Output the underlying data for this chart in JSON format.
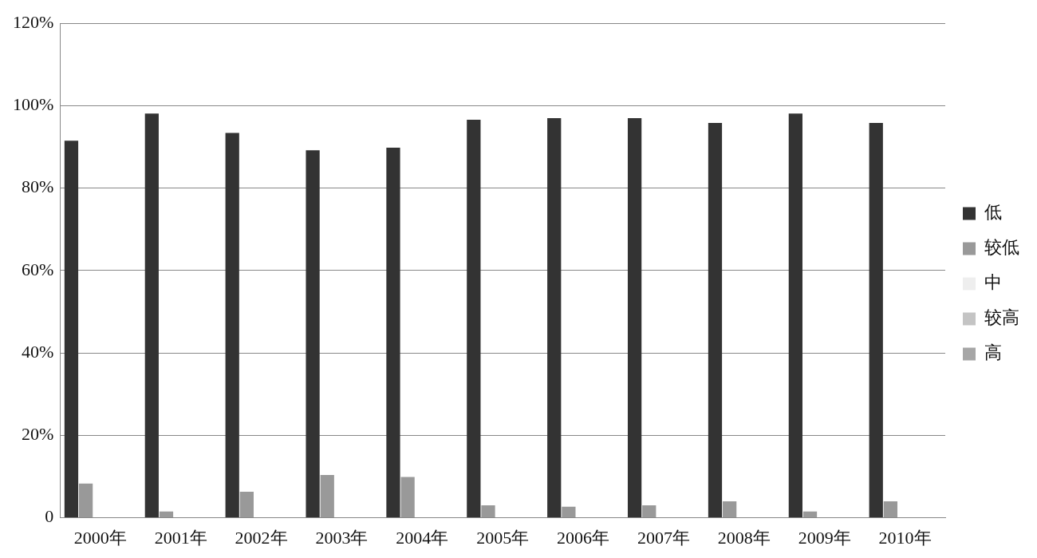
{
  "chart_data": {
    "type": "bar",
    "categories": [
      "2000年",
      "2001年",
      "2002年",
      "2003年",
      "2004年",
      "2005年",
      "2006年",
      "2007年",
      "2008年",
      "2009年",
      "2010年"
    ],
    "series": [
      {
        "name": "低",
        "color": "#333333",
        "values": [
          91.5,
          98.1,
          93.4,
          89.2,
          89.8,
          96.6,
          97,
          97,
          95.8,
          98.1,
          95.8
        ]
      },
      {
        "name": "较低",
        "color": "#999999",
        "values": [
          8.3,
          1.5,
          6.3,
          10.4,
          9.9,
          3,
          2.7,
          3,
          4,
          1.5,
          4
        ]
      },
      {
        "name": "中",
        "color": "#eeeeee",
        "values": [
          0,
          0,
          0,
          0,
          0,
          0,
          0,
          0,
          0,
          0,
          0
        ]
      },
      {
        "name": "较高",
        "color": "#c4c4c4",
        "values": [
          0,
          0,
          0,
          0,
          0,
          0,
          0,
          0,
          0,
          0,
          0
        ]
      },
      {
        "name": "高",
        "color": "#a6a6a6",
        "values": [
          0,
          0,
          0,
          0,
          0,
          0,
          0,
          0,
          0,
          0,
          0
        ]
      }
    ],
    "ylim": [
      0,
      120
    ],
    "yticks": [
      {
        "value": 0,
        "label": "0"
      },
      {
        "value": 20,
        "label": "20%"
      },
      {
        "value": 40,
        "label": "40%"
      },
      {
        "value": 60,
        "label": "60%"
      },
      {
        "value": 80,
        "label": "80%"
      },
      {
        "value": 100,
        "label": "100%"
      },
      {
        "value": 120,
        "label": "120%"
      }
    ],
    "grid": "y",
    "legend": "right"
  }
}
